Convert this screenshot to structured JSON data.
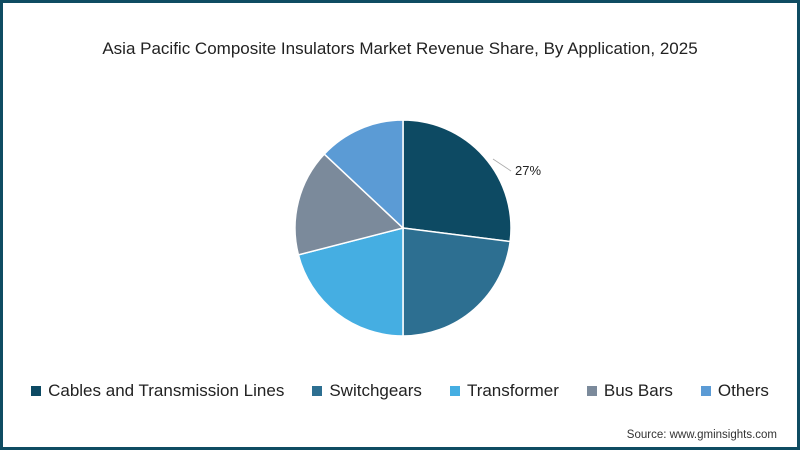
{
  "title": "Asia Pacific Composite Insulators Market Revenue Share, By Application, 2025",
  "source": "Source: www.gminsights.com",
  "colors": {
    "border": "#0f4c62"
  },
  "chart_data": {
    "type": "pie",
    "title": "Asia Pacific Composite Insulators Market Revenue Share, By Application, 2025",
    "categories": [
      "Cables and Transmission Lines",
      "Switchgears",
      "Transformer",
      "Bus Bars",
      "Others"
    ],
    "values": [
      27,
      23,
      21,
      16,
      13
    ],
    "colors": [
      "#0d4a63",
      "#2d6f91",
      "#45aee2",
      "#7b8a9b",
      "#5b9bd5"
    ],
    "labels_shown": [
      {
        "category": "Cables and Transmission Lines",
        "label": "27%"
      }
    ],
    "start_angle_deg": 0,
    "direction": "clockwise",
    "legend_position": "bottom"
  },
  "legend": [
    {
      "label": "Cables and Transmission Lines",
      "color": "#0d4a63"
    },
    {
      "label": "Switchgears",
      "color": "#2d6f91"
    },
    {
      "label": "Transformer",
      "color": "#45aee2"
    },
    {
      "label": "Bus Bars",
      "color": "#7b8a9b"
    },
    {
      "label": "Others",
      "color": "#5b9bd5"
    }
  ],
  "data_label": "27%"
}
